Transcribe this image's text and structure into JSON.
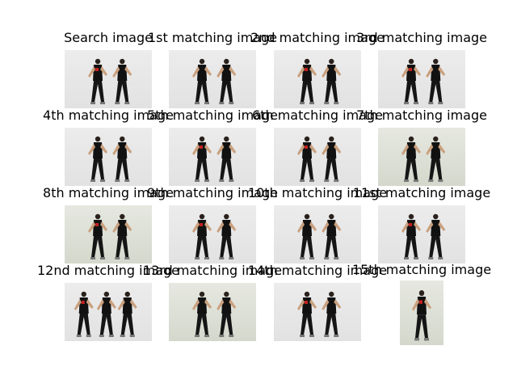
{
  "figure": {
    "panels": [
      {
        "title": "Search image"
      },
      {
        "title": "1st matching image"
      },
      {
        "title": "2nd matching image"
      },
      {
        "title": "3rd matching image"
      },
      {
        "title": "4th matching image"
      },
      {
        "title": "5th matching image"
      },
      {
        "title": "6th matching image"
      },
      {
        "title": "7th matching image"
      },
      {
        "title": "8th matching image"
      },
      {
        "title": "9th matching image"
      },
      {
        "title": "10th matching image"
      },
      {
        "title": "11st matching image"
      },
      {
        "title": "12nd matching image"
      },
      {
        "title": "13rd matching image"
      },
      {
        "title": "14th matching image"
      },
      {
        "title": "15th matching image"
      }
    ]
  }
}
